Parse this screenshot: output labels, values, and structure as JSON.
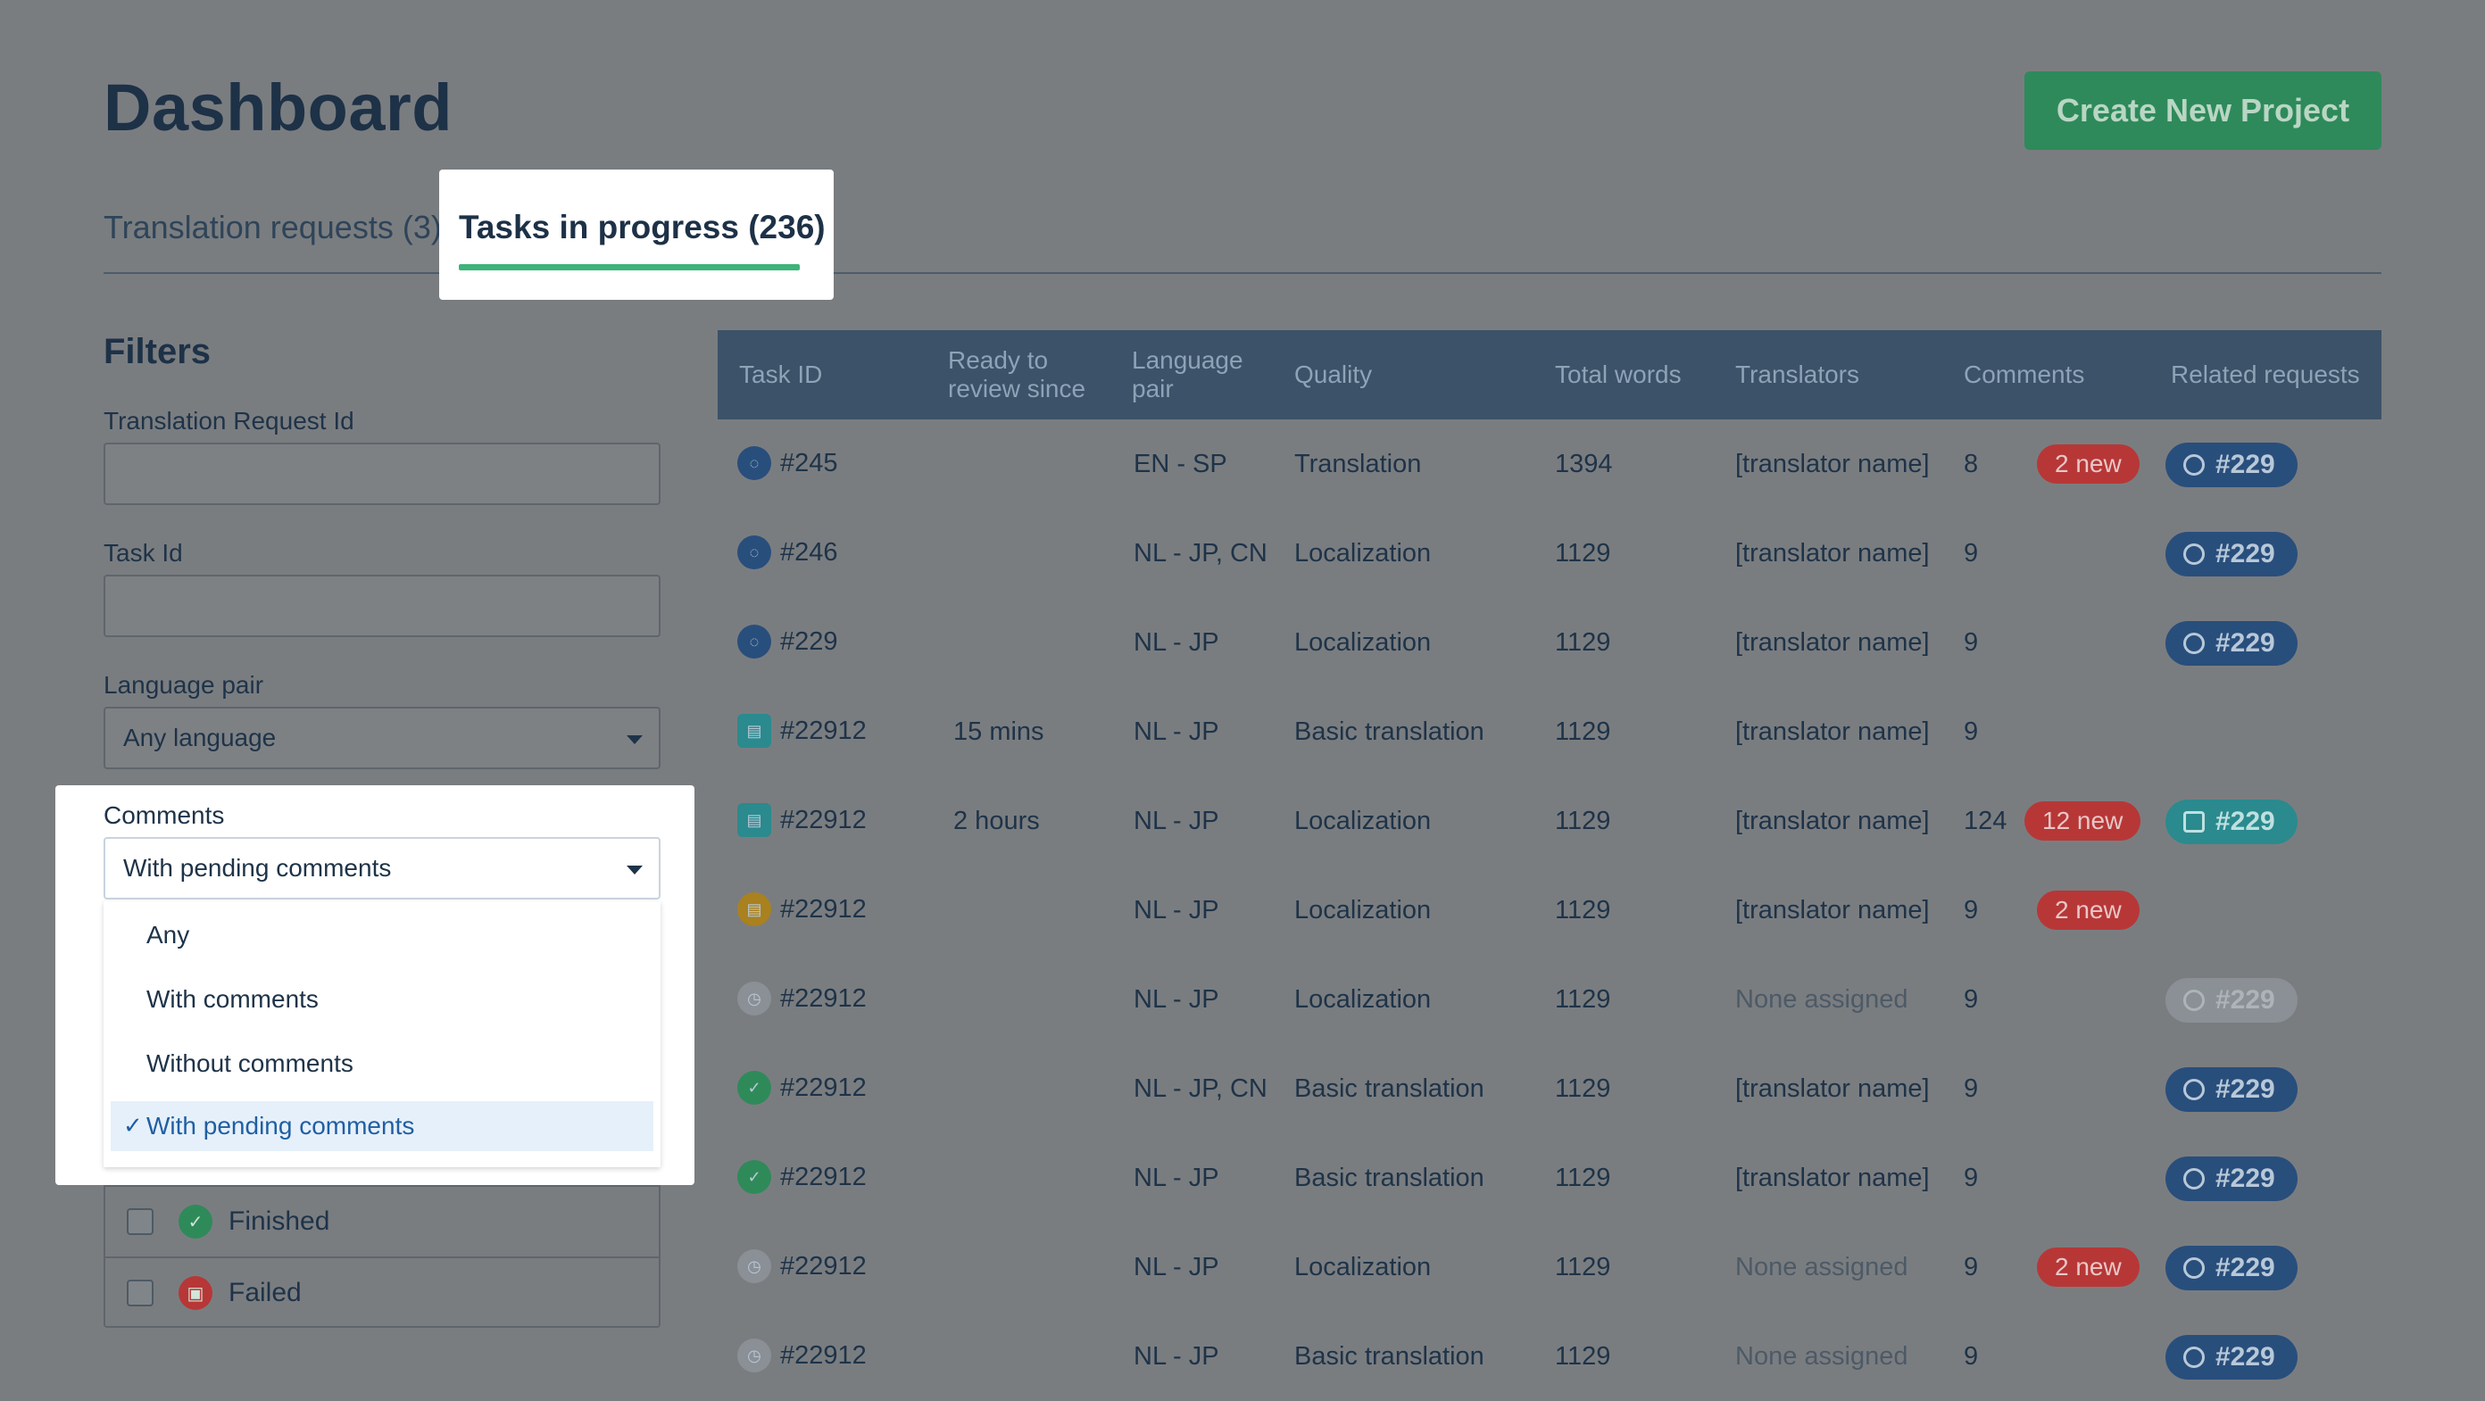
{
  "header": {
    "title": "Dashboard",
    "create_label": "Create New Project"
  },
  "tabs": [
    {
      "label": "Translation requests (3)",
      "active": false
    },
    {
      "label": "Tasks in progress (236)",
      "active": true
    }
  ],
  "filters": {
    "title": "Filters",
    "translation_request_id_label": "Translation Request Id",
    "translation_request_id_value": "",
    "task_id_label": "Task Id",
    "task_id_value": "",
    "language_pair_label": "Language pair",
    "language_pair_value": "Any language",
    "comments_label": "Comments",
    "comments_value": "With pending comments",
    "comments_options": [
      "Any",
      "With comments",
      "Without comments",
      "With pending comments"
    ],
    "status_items": [
      {
        "label": "Finished",
        "icon": "check-circle-icon",
        "color": "#2f8a5a"
      },
      {
        "label": "Failed",
        "icon": "failed-icon",
        "color": "#b73737"
      }
    ]
  },
  "table": {
    "headers": {
      "task_id": "Task ID",
      "ready_line1": "Ready to",
      "ready_line2": "review since",
      "lang_line1": "Language",
      "lang_line2": "pair",
      "quality": "Quality",
      "total_words": "Total words",
      "translators": "Translators",
      "comments": "Comments",
      "related": "Related requests"
    },
    "rows": [
      {
        "id": "#245",
        "icon": "blue",
        "ready": "",
        "lang": "EN - SP",
        "quality": "Translation",
        "words": "1394",
        "translators": "[translator name]",
        "comments": "8",
        "new": "2 new",
        "related": "#229",
        "rel_style": "blue"
      },
      {
        "id": "#246",
        "icon": "blue",
        "ready": "",
        "lang": "NL - JP, CN",
        "quality": "Localization",
        "words": "1129",
        "translators": "[translator name]",
        "comments": "9",
        "new": "",
        "related": "#229",
        "rel_style": "blue"
      },
      {
        "id": "#229",
        "icon": "blue",
        "ready": "",
        "lang": "NL - JP",
        "quality": "Localization",
        "words": "1129",
        "translators": "[translator name]",
        "comments": "9",
        "new": "",
        "related": "#229",
        "rel_style": "blue"
      },
      {
        "id": "#22912",
        "icon": "teal",
        "ready": "15 mins",
        "lang": "NL - JP",
        "quality": "Basic translation",
        "words": "1129",
        "translators": "[translator name]",
        "comments": "9",
        "new": "",
        "related": "",
        "rel_style": ""
      },
      {
        "id": "#22912",
        "icon": "teal",
        "ready": "2 hours",
        "lang": "NL - JP",
        "quality": "Localization",
        "words": "1129",
        "translators": "[translator name]",
        "comments": "124",
        "new": "12 new",
        "related": "#229",
        "rel_style": "teal"
      },
      {
        "id": "#22912",
        "icon": "amber",
        "ready": "",
        "lang": "NL - JP",
        "quality": "Localization",
        "words": "1129",
        "translators": "[translator name]",
        "comments": "9",
        "new": "2 new",
        "related": "",
        "rel_style": ""
      },
      {
        "id": "#22912",
        "icon": "gray",
        "ready": "",
        "lang": "NL - JP",
        "quality": "Localization",
        "words": "1129",
        "translators": "None assigned",
        "comments": "9",
        "new": "",
        "related": "#229",
        "rel_style": "gray"
      },
      {
        "id": "#22912",
        "icon": "green",
        "ready": "",
        "lang": "NL - JP, CN",
        "quality": "Basic translation",
        "words": "1129",
        "translators": "[translator name]",
        "comments": "9",
        "new": "",
        "related": "#229",
        "rel_style": "blue"
      },
      {
        "id": "#22912",
        "icon": "green",
        "ready": "",
        "lang": "NL - JP",
        "quality": "Basic translation",
        "words": "1129",
        "translators": "[translator name]",
        "comments": "9",
        "new": "",
        "related": "#229",
        "rel_style": "blue"
      },
      {
        "id": "#22912",
        "icon": "gray",
        "ready": "",
        "lang": "NL - JP",
        "quality": "Localization",
        "words": "1129",
        "translators": "None assigned",
        "comments": "9",
        "new": "2 new",
        "related": "#229",
        "rel_style": "blue"
      },
      {
        "id": "#22912",
        "icon": "gray",
        "ready": "",
        "lang": "NL - JP",
        "quality": "Basic translation",
        "words": "1129",
        "translators": "None assigned",
        "comments": "9",
        "new": "",
        "related": "#229",
        "rel_style": "blue"
      }
    ]
  }
}
